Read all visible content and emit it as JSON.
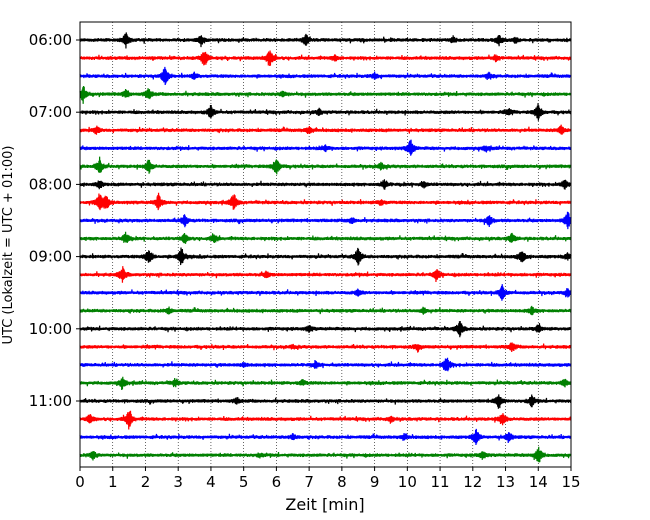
{
  "chart_data": {
    "type": "line",
    "title": "",
    "xlabel": "Zeit  [min]",
    "ylabel": "UTC (Lokalzeit = UTC + 01:00)",
    "xlim": [
      0,
      15
    ],
    "x_ticks": [
      "0",
      "1",
      "2",
      "3",
      "4",
      "5",
      "6",
      "7",
      "8",
      "9",
      "10",
      "11",
      "12",
      "13",
      "14",
      "15"
    ],
    "y_tick_labels": [
      "06:00",
      "07:00",
      "08:00",
      "09:00",
      "10:00",
      "11:00"
    ],
    "grid": "vertical dotted lines at each minute",
    "trace_color_cycle": [
      "#000000",
      "#ff0000",
      "#0000ff",
      "#008000"
    ],
    "traces": [
      {
        "start": "06:00",
        "events": [
          [
            1.4,
            0.8
          ],
          [
            3.7,
            0.6
          ],
          [
            6.9,
            0.6
          ],
          [
            11.4,
            0.3
          ],
          [
            12.8,
            0.5
          ],
          [
            13.3,
            0.3
          ]
        ]
      },
      {
        "start": "06:15",
        "events": [
          [
            3.8,
            0.9
          ],
          [
            5.8,
            0.9
          ],
          [
            7.8,
            0.3
          ],
          [
            12.7,
            0.3
          ]
        ]
      },
      {
        "start": "06:30",
        "events": [
          [
            2.6,
            1.0
          ],
          [
            3.5,
            0.3
          ],
          [
            9.0,
            0.3
          ],
          [
            12.5,
            0.3
          ]
        ]
      },
      {
        "start": "06:45",
        "events": [
          [
            0.1,
            0.9
          ],
          [
            1.4,
            0.4
          ],
          [
            2.1,
            0.6
          ],
          [
            6.2,
            0.3
          ]
        ]
      },
      {
        "start": "07:00",
        "events": [
          [
            4.0,
            0.7
          ],
          [
            7.3,
            0.3
          ],
          [
            13.1,
            0.3
          ],
          [
            14.0,
            0.9
          ]
        ]
      },
      {
        "start": "07:15",
        "events": [
          [
            0.5,
            0.4
          ],
          [
            7.0,
            0.4
          ],
          [
            14.7,
            0.5
          ]
        ]
      },
      {
        "start": "07:30",
        "events": [
          [
            10.1,
            0.9
          ],
          [
            7.5,
            0.3
          ],
          [
            12.4,
            0.3
          ]
        ]
      },
      {
        "start": "07:45",
        "events": [
          [
            0.6,
            0.8
          ],
          [
            2.1,
            0.7
          ],
          [
            6.0,
            1.0
          ],
          [
            9.2,
            0.4
          ]
        ]
      },
      {
        "start": "08:00",
        "events": [
          [
            0.6,
            0.4
          ],
          [
            9.3,
            0.5
          ],
          [
            10.5,
            0.3
          ],
          [
            14.8,
            0.5
          ]
        ]
      },
      {
        "start": "08:15",
        "events": [
          [
            0.6,
            1.0
          ],
          [
            0.8,
            0.7
          ],
          [
            2.4,
            0.8
          ],
          [
            4.7,
            0.9
          ],
          [
            9.2,
            0.3
          ]
        ]
      },
      {
        "start": "08:30",
        "events": [
          [
            3.2,
            0.6
          ],
          [
            12.5,
            0.6
          ],
          [
            14.9,
            0.9
          ],
          [
            8.3,
            0.3
          ]
        ]
      },
      {
        "start": "08:45",
        "events": [
          [
            1.4,
            0.6
          ],
          [
            3.2,
            0.5
          ],
          [
            4.1,
            0.4
          ],
          [
            13.2,
            0.5
          ]
        ]
      },
      {
        "start": "09:00",
        "events": [
          [
            2.1,
            0.9
          ],
          [
            3.1,
            1.0
          ],
          [
            8.5,
            0.9
          ],
          [
            13.5,
            0.7
          ],
          [
            14.9,
            0.3
          ]
        ]
      },
      {
        "start": "09:15",
        "events": [
          [
            1.3,
            0.8
          ],
          [
            10.9,
            0.6
          ],
          [
            5.7,
            0.3
          ]
        ]
      },
      {
        "start": "09:30",
        "events": [
          [
            12.9,
            0.8
          ],
          [
            14.9,
            0.4
          ],
          [
            8.5,
            0.3
          ]
        ]
      },
      {
        "start": "09:45",
        "events": [
          [
            2.7,
            0.3
          ],
          [
            13.8,
            0.4
          ],
          [
            10.5,
            0.3
          ]
        ]
      },
      {
        "start": "10:00",
        "events": [
          [
            11.6,
            0.9
          ],
          [
            14.0,
            0.4
          ],
          [
            7.0,
            0.3
          ]
        ]
      },
      {
        "start": "10:15",
        "events": [
          [
            13.2,
            0.5
          ],
          [
            10.3,
            0.3
          ],
          [
            6.5,
            0.2
          ]
        ]
      },
      {
        "start": "10:30",
        "events": [
          [
            11.2,
            0.9
          ],
          [
            7.2,
            0.3
          ],
          [
            5.0,
            0.2
          ]
        ]
      },
      {
        "start": "10:45",
        "events": [
          [
            1.3,
            0.6
          ],
          [
            2.9,
            0.4
          ],
          [
            14.8,
            0.4
          ],
          [
            6.8,
            0.3
          ]
        ]
      },
      {
        "start": "11:00",
        "events": [
          [
            12.8,
            0.8
          ],
          [
            13.8,
            0.6
          ],
          [
            4.8,
            0.3
          ]
        ]
      },
      {
        "start": "11:15",
        "events": [
          [
            0.3,
            0.5
          ],
          [
            1.5,
            1.0
          ],
          [
            12.9,
            0.7
          ],
          [
            9.5,
            0.3
          ]
        ]
      },
      {
        "start": "11:30",
        "events": [
          [
            12.1,
            0.8
          ],
          [
            13.1,
            0.5
          ],
          [
            6.5,
            0.3
          ],
          [
            9.9,
            0.3
          ]
        ]
      },
      {
        "start": "11:45",
        "events": [
          [
            0.4,
            0.5
          ],
          [
            14.0,
            1.0
          ],
          [
            12.3,
            0.4
          ],
          [
            5.5,
            0.2
          ]
        ]
      }
    ]
  }
}
